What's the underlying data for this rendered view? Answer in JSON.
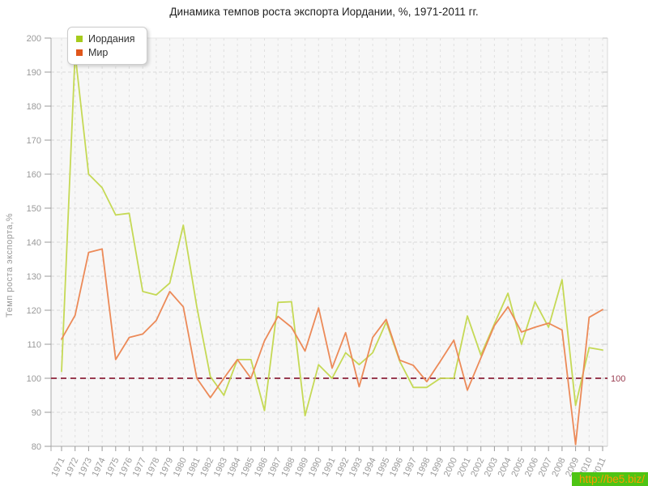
{
  "watermark": "http://be5.biz/",
  "colors": {
    "plot_background": "#f7f7f7",
    "grid_horizontal": "#d9d9d9",
    "grid_vertical": "#e0e0e0",
    "axis": "#aaaaaa",
    "tick_text": "#999999",
    "title_text": "#222222",
    "watermark_bg": "#4ec414",
    "watermark_text": "#ff9a00"
  },
  "chart_data": {
    "type": "line",
    "title": "Динамика темпов роста экспорта Иордании, %, 1971-2011 гг.",
    "xlabel": "",
    "ylabel": "Темп роста экспорта,%",
    "ylim": [
      80,
      200
    ],
    "ytick_step": 10,
    "grid": true,
    "legend_position": "top-left",
    "x": [
      1971,
      1972,
      1973,
      1974,
      1975,
      1976,
      1977,
      1978,
      1979,
      1980,
      1981,
      1982,
      1983,
      1984,
      1985,
      1986,
      1987,
      1988,
      1989,
      1990,
      1991,
      1992,
      1993,
      1994,
      1995,
      1996,
      1997,
      1998,
      1999,
      2000,
      2001,
      2002,
      2003,
      2004,
      2005,
      2006,
      2007,
      2008,
      2009,
      2010,
      2011
    ],
    "refline": {
      "value": 100,
      "label": "100",
      "color": "#993c50"
    },
    "series": [
      {
        "id": "jordan",
        "name": "Иордания",
        "line_color": "#c5d955",
        "chip_color": "#a6cb1c",
        "values": [
          102,
          195.5,
          160,
          156,
          148,
          148.5,
          125.5,
          124.5,
          128,
          145,
          121,
          100.5,
          95,
          105.5,
          105.5,
          90.5,
          122.3,
          122.5,
          89,
          104,
          100,
          107.5,
          104,
          107.5,
          116.5,
          105,
          97.3,
          97.3,
          100,
          100,
          118.3,
          106.8,
          116,
          125,
          110,
          122.5,
          115,
          129,
          92,
          109,
          108.3
        ]
      },
      {
        "id": "world",
        "name": "Мир",
        "line_color": "#ec8a58",
        "chip_color": "#e0561b",
        "values": [
          111.5,
          118.5,
          137,
          138,
          105.5,
          112,
          113,
          117,
          125.5,
          121,
          100,
          94.3,
          100,
          105.5,
          100,
          111,
          118.2,
          115,
          108,
          120.7,
          103,
          113.4,
          97.5,
          112,
          117.3,
          105.3,
          103.8,
          99,
          105,
          111.2,
          96.5,
          106,
          115.5,
          121,
          113.6,
          115,
          116.2,
          114.2,
          80.5,
          117.9,
          120.2
        ]
      }
    ]
  }
}
